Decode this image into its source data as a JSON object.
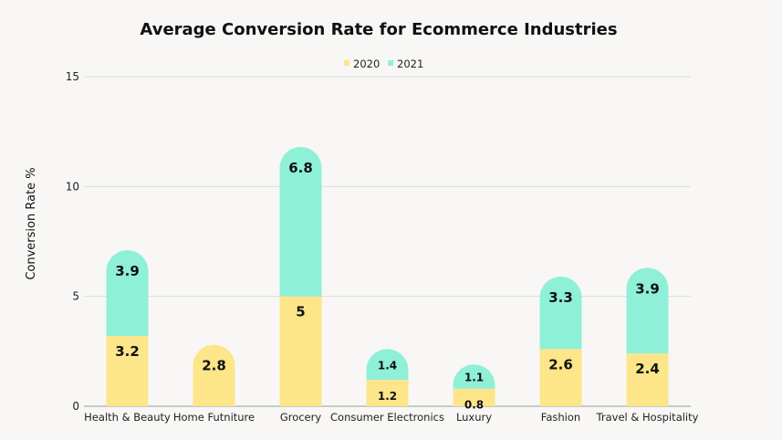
{
  "chart_data": {
    "type": "bar",
    "stacked": true,
    "title": "Average Conversion Rate for Ecommerce Industries",
    "xlabel": "",
    "ylabel": "Conversion Rate  %",
    "ylim": [
      0,
      15
    ],
    "yticks": [
      0,
      5,
      10,
      15
    ],
    "grid": true,
    "legend_position": "top-center",
    "categories": [
      "Health & Beauty",
      "Home Futniture",
      "Grocery",
      "Consumer Electronics",
      "Luxury",
      "Fashion",
      "Travel & Hospitality"
    ],
    "series": [
      {
        "name": "2020",
        "color": "#fde58a",
        "values": [
          3.2,
          2.8,
          5,
          1.2,
          0.8,
          2.6,
          2.4
        ]
      },
      {
        "name": "2021",
        "color": "#8ff0d8",
        "values": [
          3.9,
          null,
          6.8,
          1.4,
          1.1,
          3.3,
          3.9
        ]
      }
    ]
  }
}
